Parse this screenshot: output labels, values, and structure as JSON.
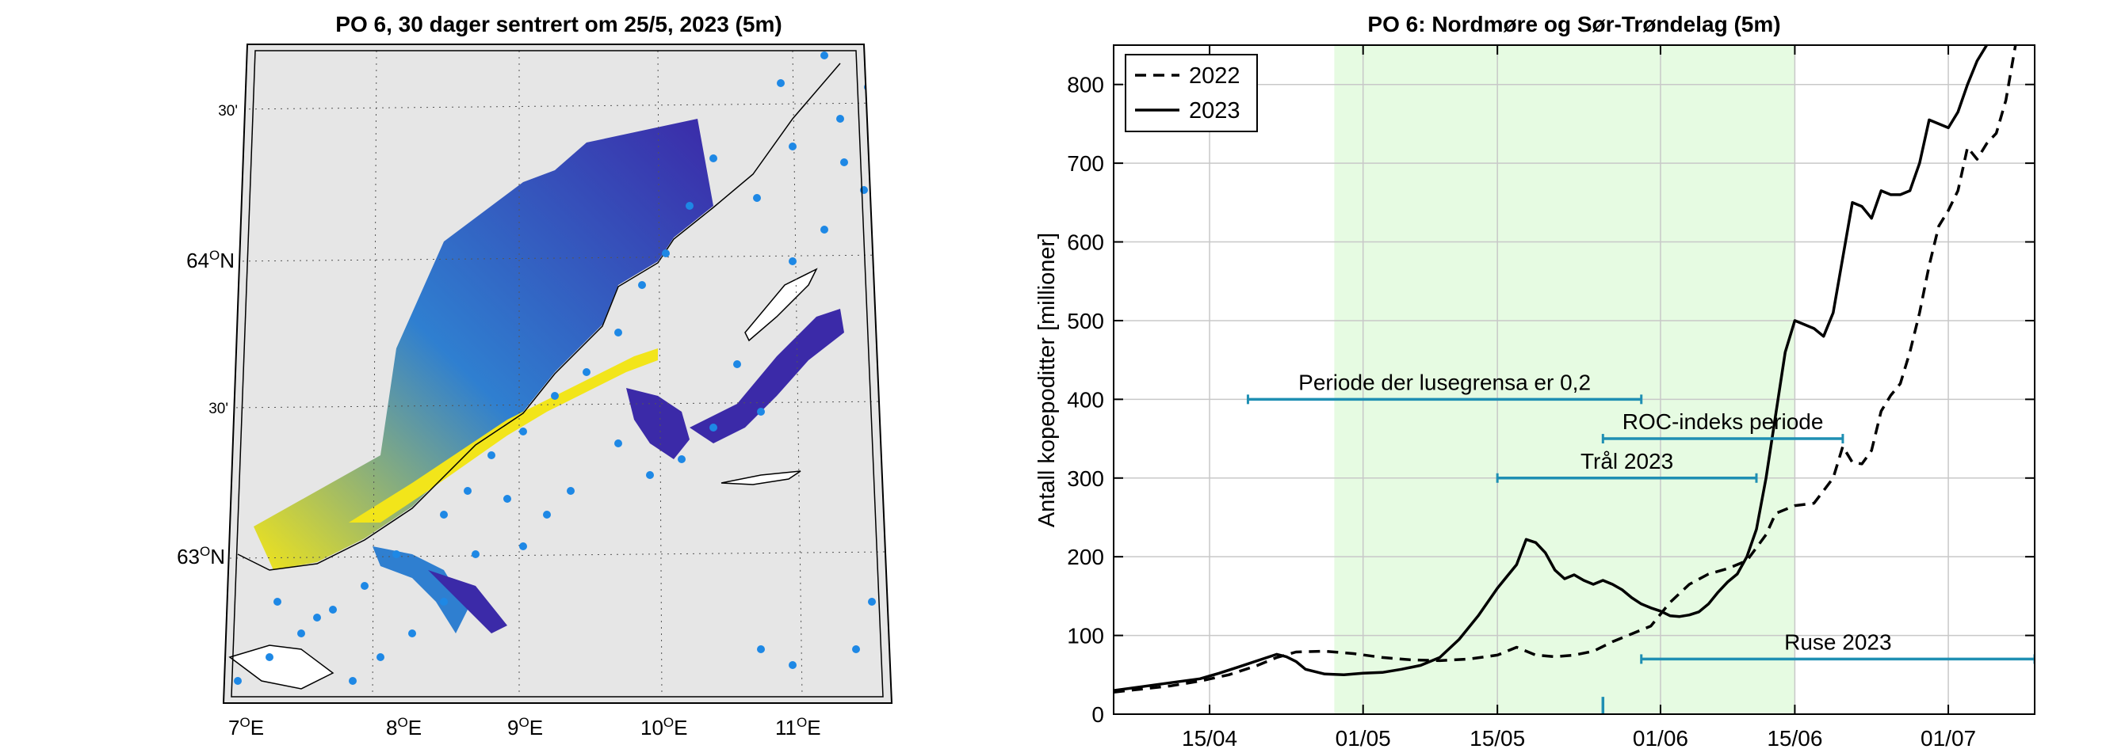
{
  "colors": {
    "frame": "#000000",
    "grid": "#c8c8c8",
    "land": "#e6e6e6",
    "coast": "#000000",
    "sea_low": "#3b2aa8",
    "sea_mid": "#2f7fd0",
    "sea_high": "#f2e51a",
    "station": "#1e88e5",
    "highlight_band": "#e6fbe2",
    "interval": "#1f8fb3",
    "series_2022": "#000000",
    "series_2023": "#000000"
  },
  "map": {
    "title": "PO 6, 30 dager sentrert om 25/5, 2023 (5m)",
    "lon_labels": [
      {
        "deg": "7",
        "sup": "O",
        "dir": "E"
      },
      {
        "deg": "8",
        "sup": "O",
        "dir": "E"
      },
      {
        "deg": "9",
        "sup": "O",
        "dir": "E"
      },
      {
        "deg": "10",
        "sup": "O",
        "dir": "E"
      },
      {
        "deg": "11",
        "sup": "O",
        "dir": "E"
      }
    ],
    "lat_labels": [
      {
        "text": "30'",
        "major": false
      },
      {
        "deg": "64",
        "sup": "O",
        "dir": "N",
        "major": true
      },
      {
        "text": "30'",
        "major": false
      },
      {
        "deg": "63",
        "sup": "O",
        "dir": "N",
        "major": true
      }
    ]
  },
  "chart_data": {
    "type": "line",
    "title": "PO 6: Nordmøre og Sør-Trøndelag (5m)",
    "xlabel": "",
    "ylabel": "Antall kopepoditter [millioner]",
    "ylim": [
      0,
      850
    ],
    "yticks": [
      0,
      100,
      200,
      300,
      400,
      500,
      600,
      700,
      800
    ],
    "x_range": [
      "2023-04-05",
      "2023-07-10"
    ],
    "xticks": [
      {
        "date": "2023-04-15",
        "label": "15/04"
      },
      {
        "date": "2023-05-01",
        "label": "01/05"
      },
      {
        "date": "2023-05-15",
        "label": "15/05"
      },
      {
        "date": "2023-06-01",
        "label": "01/06"
      },
      {
        "date": "2023-06-15",
        "label": "15/06"
      },
      {
        "date": "2023-07-01",
        "label": "01/07"
      }
    ],
    "grid": true,
    "legend": {
      "placement": "top-left",
      "entries": [
        "2022",
        "2023"
      ]
    },
    "highlight_band": {
      "start": "2023-04-28",
      "end": "2023-06-15"
    },
    "series": [
      {
        "name": "2022",
        "style": "dashed",
        "points": [
          [
            "2023-04-05",
            28
          ],
          [
            "2023-04-08",
            32
          ],
          [
            "2023-04-11",
            36
          ],
          [
            "2023-04-14",
            42
          ],
          [
            "2023-04-17",
            50
          ],
          [
            "2023-04-20",
            62
          ],
          [
            "2023-04-22",
            72
          ],
          [
            "2023-04-24",
            79
          ],
          [
            "2023-04-27",
            80
          ],
          [
            "2023-04-30",
            77
          ],
          [
            "2023-05-03",
            72
          ],
          [
            "2023-05-06",
            69
          ],
          [
            "2023-05-09",
            68
          ],
          [
            "2023-05-12",
            70
          ],
          [
            "2023-05-15",
            75
          ],
          [
            "2023-05-17",
            85
          ],
          [
            "2023-05-19",
            75
          ],
          [
            "2023-05-21",
            73
          ],
          [
            "2023-05-23",
            75
          ],
          [
            "2023-05-25",
            80
          ],
          [
            "2023-05-27",
            92
          ],
          [
            "2023-05-29",
            102
          ],
          [
            "2023-05-31",
            112
          ],
          [
            "2023-06-02",
            142
          ],
          [
            "2023-06-04",
            165
          ],
          [
            "2023-06-06",
            178
          ],
          [
            "2023-06-08",
            185
          ],
          [
            "2023-06-10",
            195
          ],
          [
            "2023-06-12",
            228
          ],
          [
            "2023-06-13",
            255
          ],
          [
            "2023-06-15",
            265
          ],
          [
            "2023-06-17",
            268
          ],
          [
            "2023-06-19",
            300
          ],
          [
            "2023-06-20",
            340
          ],
          [
            "2023-06-21",
            320
          ],
          [
            "2023-06-22",
            318
          ],
          [
            "2023-06-23",
            335
          ],
          [
            "2023-06-24",
            385
          ],
          [
            "2023-06-25",
            405
          ],
          [
            "2023-06-26",
            420
          ],
          [
            "2023-06-27",
            460
          ],
          [
            "2023-06-28",
            510
          ],
          [
            "2023-06-29",
            570
          ],
          [
            "2023-06-30",
            620
          ],
          [
            "2023-07-01",
            640
          ],
          [
            "2023-07-02",
            665
          ],
          [
            "2023-07-03",
            720
          ],
          [
            "2023-07-04",
            705
          ],
          [
            "2023-07-05",
            725
          ],
          [
            "2023-07-06",
            738
          ],
          [
            "2023-07-07",
            780
          ],
          [
            "2023-07-08",
            850
          ]
        ]
      },
      {
        "name": "2023",
        "style": "solid",
        "points": [
          [
            "2023-04-05",
            30
          ],
          [
            "2023-04-08",
            35
          ],
          [
            "2023-04-11",
            40
          ],
          [
            "2023-04-14",
            45
          ],
          [
            "2023-04-16",
            52
          ],
          [
            "2023-04-18",
            60
          ],
          [
            "2023-04-20",
            68
          ],
          [
            "2023-04-22",
            76
          ],
          [
            "2023-04-23",
            73
          ],
          [
            "2023-04-24",
            67
          ],
          [
            "2023-04-25",
            57
          ],
          [
            "2023-04-27",
            51
          ],
          [
            "2023-04-29",
            50
          ],
          [
            "2023-05-01",
            52
          ],
          [
            "2023-05-03",
            53
          ],
          [
            "2023-05-05",
            57
          ],
          [
            "2023-05-07",
            62
          ],
          [
            "2023-05-09",
            72
          ],
          [
            "2023-05-11",
            95
          ],
          [
            "2023-05-13",
            125
          ],
          [
            "2023-05-15",
            160
          ],
          [
            "2023-05-17",
            190
          ],
          [
            "2023-05-18",
            222
          ],
          [
            "2023-05-19",
            218
          ],
          [
            "2023-05-20",
            205
          ],
          [
            "2023-05-21",
            183
          ],
          [
            "2023-05-22",
            172
          ],
          [
            "2023-05-23",
            177
          ],
          [
            "2023-05-24",
            170
          ],
          [
            "2023-05-25",
            165
          ],
          [
            "2023-05-26",
            170
          ],
          [
            "2023-05-27",
            165
          ],
          [
            "2023-05-28",
            158
          ],
          [
            "2023-05-29",
            148
          ],
          [
            "2023-05-30",
            140
          ],
          [
            "2023-05-31",
            135
          ],
          [
            "2023-06-01",
            131
          ],
          [
            "2023-06-02",
            125
          ],
          [
            "2023-06-03",
            124
          ],
          [
            "2023-06-04",
            126
          ],
          [
            "2023-06-05",
            130
          ],
          [
            "2023-06-06",
            140
          ],
          [
            "2023-06-07",
            155
          ],
          [
            "2023-06-08",
            168
          ],
          [
            "2023-06-09",
            178
          ],
          [
            "2023-06-10",
            200
          ],
          [
            "2023-06-11",
            235
          ],
          [
            "2023-06-12",
            300
          ],
          [
            "2023-06-13",
            380
          ],
          [
            "2023-06-14",
            460
          ],
          [
            "2023-06-15",
            500
          ],
          [
            "2023-06-16",
            495
          ],
          [
            "2023-06-17",
            490
          ],
          [
            "2023-06-18",
            480
          ],
          [
            "2023-06-19",
            510
          ],
          [
            "2023-06-20",
            580
          ],
          [
            "2023-06-21",
            650
          ],
          [
            "2023-06-22",
            645
          ],
          [
            "2023-06-23",
            630
          ],
          [
            "2023-06-24",
            665
          ],
          [
            "2023-06-25",
            660
          ],
          [
            "2023-06-26",
            660
          ],
          [
            "2023-06-27",
            665
          ],
          [
            "2023-06-28",
            700
          ],
          [
            "2023-06-29",
            755
          ],
          [
            "2023-06-30",
            750
          ],
          [
            "2023-07-01",
            745
          ],
          [
            "2023-07-02",
            765
          ],
          [
            "2023-07-03",
            800
          ],
          [
            "2023-07-04",
            830
          ],
          [
            "2023-07-05",
            850
          ]
        ]
      }
    ],
    "intervals": [
      {
        "label": "Periode der lusegrensa er 0,2",
        "start": "2023-04-19",
        "end": "2023-05-30",
        "y": 400
      },
      {
        "label": "ROC-indeks periode",
        "start": "2023-05-26",
        "end": "2023-06-20",
        "y": 350
      },
      {
        "label": "Trål 2023",
        "start": "2023-05-15",
        "end": "2023-06-11",
        "y": 300
      },
      {
        "label": "Ruse 2023",
        "start": "2023-05-30",
        "end": "2023-07-10",
        "y": 70
      }
    ],
    "marker": {
      "date": "2023-05-26",
      "y_from": 0,
      "y_to": 22
    }
  }
}
